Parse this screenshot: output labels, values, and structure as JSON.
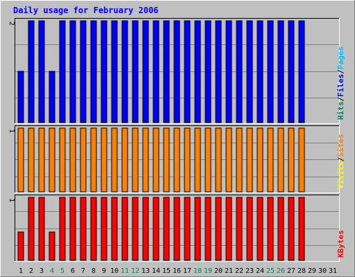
{
  "title": "Daily usage for February 2006",
  "colors": {
    "background": "#c0c0c0",
    "title": "#0000ff",
    "hits": "#00805c",
    "files": "#0000ff",
    "pages": "#00c0ff",
    "visits": "#ffff00",
    "sites": "#ff8000",
    "kbytes": "#ff0000",
    "weekend": "#00805c",
    "weekday": "#000000"
  },
  "chart_data": {
    "type": "bar",
    "categories": [
      "1",
      "2",
      "3",
      "4",
      "5",
      "6",
      "7",
      "8",
      "9",
      "10",
      "11",
      "12",
      "13",
      "14",
      "15",
      "16",
      "17",
      "18",
      "19",
      "20",
      "21",
      "22",
      "23",
      "24",
      "25",
      "26",
      "27",
      "28",
      "29",
      "30",
      "31"
    ],
    "weekend_days": [
      "4",
      "5",
      "11",
      "12",
      "18",
      "19",
      "25",
      "26"
    ],
    "panels": [
      {
        "name": "hits-files-pages",
        "y_tick": "2",
        "ylim": [
          0,
          2
        ],
        "legend": [
          {
            "label": "Hits",
            "color": "#00805c"
          },
          {
            "label": "/",
            "color": "#000000"
          },
          {
            "label": "Files",
            "color": "#0000ff"
          },
          {
            "label": "/",
            "color": "#000000"
          },
          {
            "label": "Pages",
            "color": "#00c0ff"
          }
        ],
        "series": [
          {
            "name": "Files",
            "color": "#0000ff",
            "values": [
              1,
              2,
              2,
              1,
              2,
              2,
              2,
              2,
              2,
              2,
              2,
              2,
              2,
              2,
              2,
              2,
              2,
              2,
              2,
              2,
              2,
              2,
              2,
              2,
              2,
              2,
              2,
              2
            ]
          }
        ]
      },
      {
        "name": "visits-sites",
        "y_tick": "1",
        "ylim": [
          0,
          1
        ],
        "legend": [
          {
            "label": "Visits",
            "color": "#ffff00"
          },
          {
            "label": "/",
            "color": "#000000"
          },
          {
            "label": "Sites",
            "color": "#ff8000"
          }
        ],
        "series": [
          {
            "name": "Sites",
            "color": "#ff8000",
            "values": [
              1,
              1,
              1,
              1,
              1,
              1,
              1,
              1,
              1,
              1,
              1,
              1,
              1,
              1,
              1,
              1,
              1,
              1,
              1,
              1,
              1,
              1,
              1,
              1,
              1,
              1,
              1,
              1
            ]
          }
        ]
      },
      {
        "name": "kbytes",
        "y_tick": "1",
        "ylim": [
          0,
          1
        ],
        "legend": [
          {
            "label": "KBytes",
            "color": "#ff0000"
          }
        ],
        "series": [
          {
            "name": "KBytes",
            "color": "#ff0000",
            "values": [
              0.45,
              1,
              1,
              0.45,
              1,
              1,
              1,
              1,
              1,
              1,
              1,
              1,
              1,
              1,
              1,
              1,
              1,
              1,
              1,
              1,
              1,
              1,
              1,
              1,
              1,
              1,
              1,
              1
            ]
          }
        ]
      }
    ]
  }
}
